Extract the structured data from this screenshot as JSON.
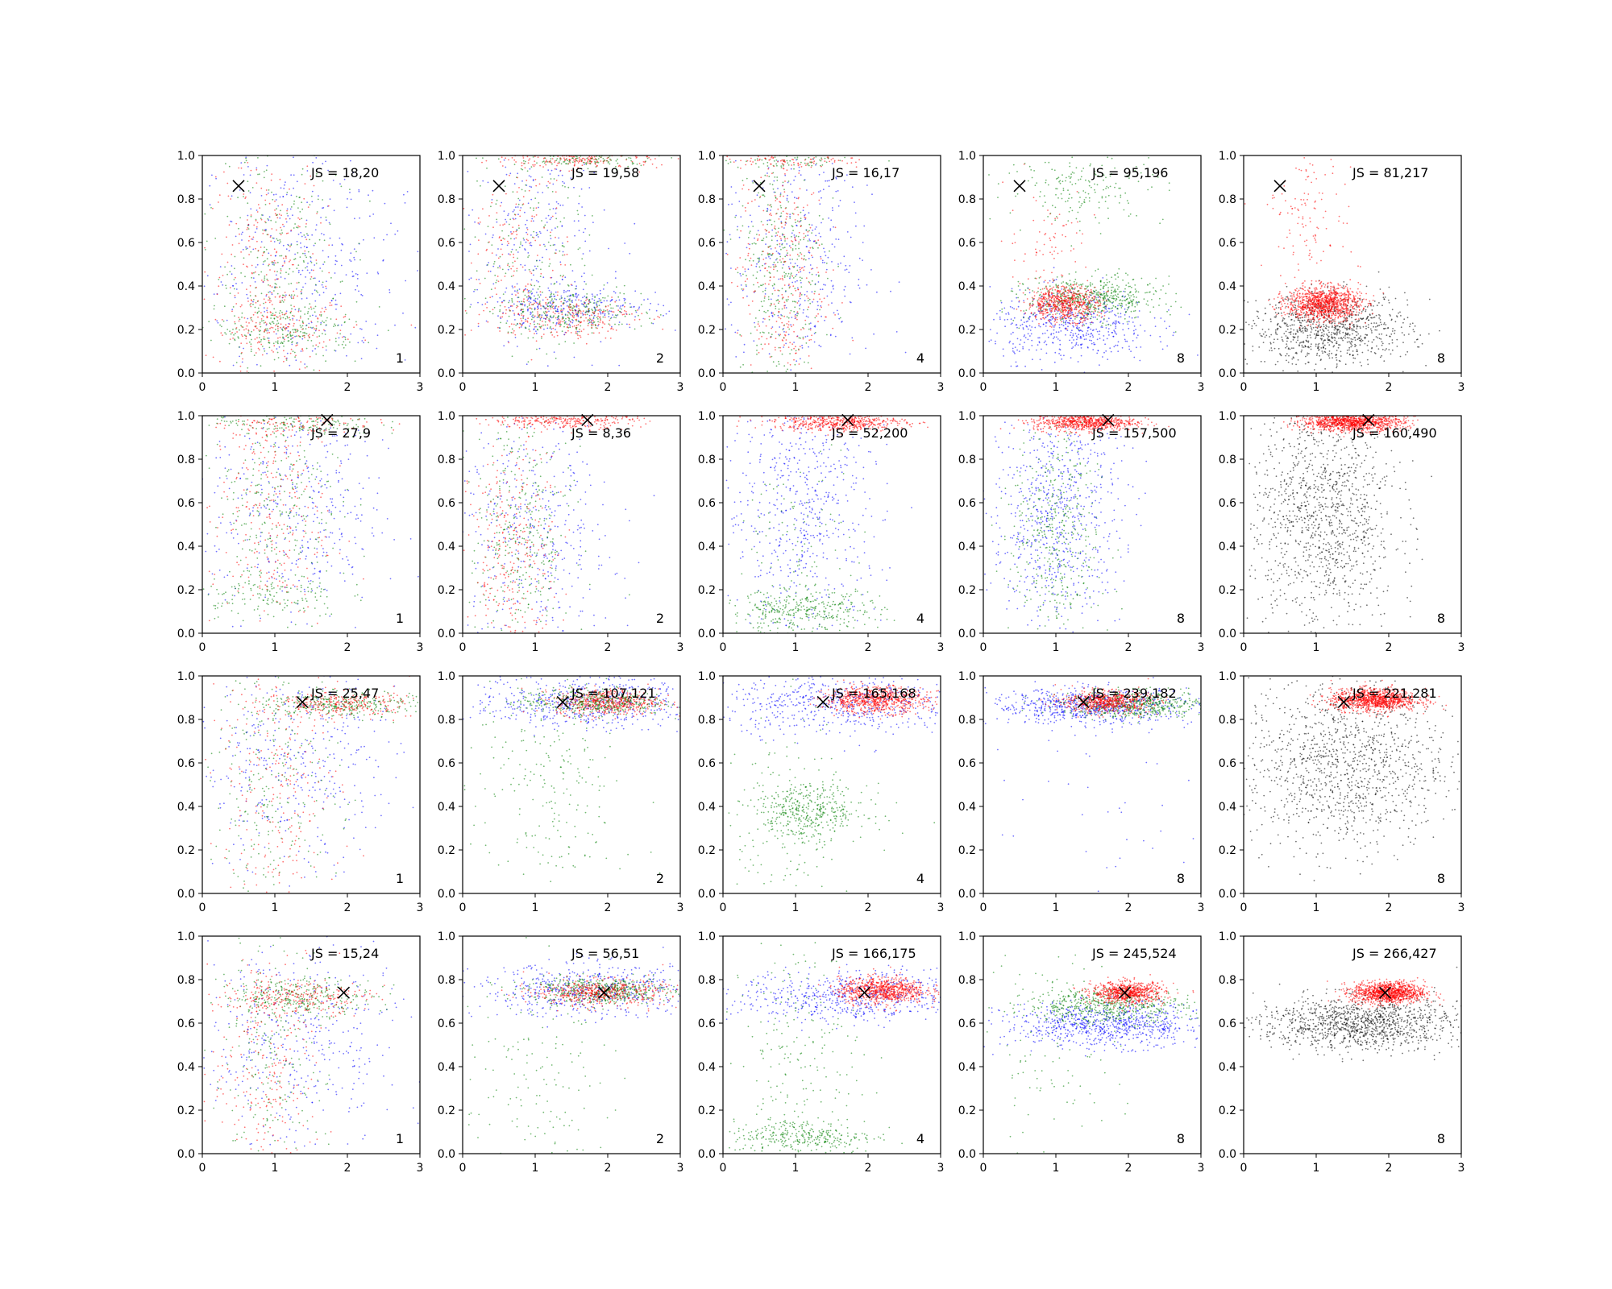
{
  "figure": {
    "rows": 4,
    "cols": 5
  },
  "chart_data": {
    "type": "scatter",
    "xlim": [
      0,
      3
    ],
    "ylim": [
      0,
      1
    ],
    "x_ticks": [
      "0",
      "1",
      "2",
      "3"
    ],
    "y_ticks": [
      "0.0",
      "0.2",
      "0.4",
      "0.6",
      "0.8",
      "1.0"
    ],
    "grid": false,
    "colors": {
      "blue": "#0000ff",
      "green": "#008000",
      "red": "#ff0000",
      "black": "#000000"
    },
    "panels": [
      {
        "row": 0,
        "col": 0,
        "js_label": "JS = 18,20",
        "n_label": "1",
        "marker": [
          0.5,
          0.86
        ],
        "clusters": [
          {
            "color": "blue",
            "cx": 1.4,
            "cy": 0.5,
            "sx": 0.7,
            "sy": 0.28,
            "n": 650
          },
          {
            "color": "green",
            "cx": 1.0,
            "cy": 0.5,
            "sx": 0.45,
            "sy": 0.3,
            "n": 500
          },
          {
            "color": "red",
            "cx": 0.9,
            "cy": 0.5,
            "sx": 0.4,
            "sy": 0.3,
            "n": 450
          },
          {
            "color": "green",
            "cx": 1.2,
            "cy": 0.2,
            "sx": 0.5,
            "sy": 0.06,
            "n": 350
          },
          {
            "color": "red",
            "cx": 1.1,
            "cy": 0.2,
            "sx": 0.5,
            "sy": 0.06,
            "n": 250
          }
        ]
      },
      {
        "row": 0,
        "col": 1,
        "js_label": "JS = 19,58",
        "n_label": "2",
        "marker": [
          0.5,
          0.86
        ],
        "clusters": [
          {
            "color": "blue",
            "cx": 1.5,
            "cy": 0.3,
            "sx": 0.6,
            "sy": 0.05,
            "n": 450
          },
          {
            "color": "green",
            "cx": 1.5,
            "cy": 0.28,
            "sx": 0.5,
            "sy": 0.05,
            "n": 450
          },
          {
            "color": "red",
            "cx": 1.4,
            "cy": 0.26,
            "sx": 0.5,
            "sy": 0.05,
            "n": 400
          },
          {
            "color": "red",
            "cx": 1.7,
            "cy": 0.98,
            "sx": 0.5,
            "sy": 0.02,
            "n": 300
          },
          {
            "color": "green",
            "cx": 1.7,
            "cy": 0.98,
            "sx": 0.5,
            "sy": 0.02,
            "n": 200
          },
          {
            "color": "blue",
            "cx": 1.0,
            "cy": 0.6,
            "sx": 0.5,
            "sy": 0.25,
            "n": 450
          },
          {
            "color": "green",
            "cx": 0.9,
            "cy": 0.6,
            "sx": 0.4,
            "sy": 0.25,
            "n": 300
          },
          {
            "color": "red",
            "cx": 0.8,
            "cy": 0.6,
            "sx": 0.35,
            "sy": 0.25,
            "n": 300
          }
        ]
      },
      {
        "row": 0,
        "col": 2,
        "js_label": "JS = 16,17",
        "n_label": "4",
        "marker": [
          0.5,
          0.86
        ],
        "clusters": [
          {
            "color": "blue",
            "cx": 1.0,
            "cy": 0.5,
            "sx": 0.5,
            "sy": 0.3,
            "n": 650
          },
          {
            "color": "green",
            "cx": 0.8,
            "cy": 0.5,
            "sx": 0.3,
            "sy": 0.3,
            "n": 600
          },
          {
            "color": "red",
            "cx": 0.8,
            "cy": 0.45,
            "sx": 0.3,
            "sy": 0.3,
            "n": 550
          },
          {
            "color": "red",
            "cx": 1.0,
            "cy": 0.98,
            "sx": 0.5,
            "sy": 0.02,
            "n": 150
          },
          {
            "color": "green",
            "cx": 1.0,
            "cy": 0.98,
            "sx": 0.5,
            "sy": 0.02,
            "n": 100
          }
        ]
      },
      {
        "row": 0,
        "col": 3,
        "js_label": "JS = 95,196",
        "n_label": "8",
        "marker": [
          0.5,
          0.86
        ],
        "clusters": [
          {
            "color": "blue",
            "cx": 1.2,
            "cy": 0.22,
            "sx": 0.55,
            "sy": 0.08,
            "n": 900
          },
          {
            "color": "green",
            "cx": 1.5,
            "cy": 0.34,
            "sx": 0.45,
            "sy": 0.05,
            "n": 900
          },
          {
            "color": "red",
            "cx": 1.1,
            "cy": 0.32,
            "sx": 0.25,
            "sy": 0.04,
            "n": 1000
          },
          {
            "color": "green",
            "cx": 1.4,
            "cy": 0.85,
            "sx": 0.55,
            "sy": 0.08,
            "n": 300
          },
          {
            "color": "red",
            "cx": 0.9,
            "cy": 0.62,
            "sx": 0.3,
            "sy": 0.12,
            "n": 120
          }
        ]
      },
      {
        "row": 0,
        "col": 4,
        "js_label": "JS = 81,217",
        "n_label": "8",
        "marker": [
          0.5,
          0.86
        ],
        "clusters": [
          {
            "color": "black",
            "cx": 1.2,
            "cy": 0.2,
            "sx": 0.55,
            "sy": 0.08,
            "n": 1500
          },
          {
            "color": "red",
            "cx": 1.1,
            "cy": 0.32,
            "sx": 0.25,
            "sy": 0.04,
            "n": 1800
          },
          {
            "color": "red",
            "cx": 0.9,
            "cy": 0.75,
            "sx": 0.3,
            "sy": 0.15,
            "n": 200
          }
        ]
      },
      {
        "row": 1,
        "col": 0,
        "js_label": "JS = 27,9",
        "n_label": "1",
        "marker": [
          1.72,
          0.98
        ],
        "clusters": [
          {
            "color": "blue",
            "cx": 1.3,
            "cy": 0.55,
            "sx": 0.6,
            "sy": 0.28,
            "n": 650
          },
          {
            "color": "green",
            "cx": 1.0,
            "cy": 0.6,
            "sx": 0.45,
            "sy": 0.3,
            "n": 500
          },
          {
            "color": "red",
            "cx": 0.9,
            "cy": 0.55,
            "sx": 0.4,
            "sy": 0.3,
            "n": 450
          },
          {
            "color": "green",
            "cx": 1.3,
            "cy": 0.97,
            "sx": 0.55,
            "sy": 0.03,
            "n": 250
          },
          {
            "color": "red",
            "cx": 1.3,
            "cy": 0.97,
            "sx": 0.55,
            "sy": 0.03,
            "n": 200
          },
          {
            "color": "green",
            "cx": 0.9,
            "cy": 0.18,
            "sx": 0.5,
            "sy": 0.05,
            "n": 200
          }
        ]
      },
      {
        "row": 1,
        "col": 1,
        "js_label": "JS = 8,36",
        "n_label": "2",
        "marker": [
          1.72,
          0.98
        ],
        "clusters": [
          {
            "color": "blue",
            "cx": 1.0,
            "cy": 0.45,
            "sx": 0.55,
            "sy": 0.3,
            "n": 700
          },
          {
            "color": "green",
            "cx": 0.8,
            "cy": 0.45,
            "sx": 0.35,
            "sy": 0.3,
            "n": 600
          },
          {
            "color": "red",
            "cx": 0.7,
            "cy": 0.35,
            "sx": 0.3,
            "sy": 0.25,
            "n": 500
          },
          {
            "color": "red",
            "cx": 1.4,
            "cy": 0.98,
            "sx": 0.5,
            "sy": 0.02,
            "n": 500
          }
        ]
      },
      {
        "row": 1,
        "col": 2,
        "js_label": "JS = 52,200",
        "n_label": "4",
        "marker": [
          1.72,
          0.98
        ],
        "clusters": [
          {
            "color": "blue",
            "cx": 1.1,
            "cy": 0.6,
            "sx": 0.55,
            "sy": 0.3,
            "n": 1000
          },
          {
            "color": "green",
            "cx": 1.1,
            "cy": 0.1,
            "sx": 0.55,
            "sy": 0.05,
            "n": 600
          },
          {
            "color": "red",
            "cx": 1.6,
            "cy": 0.97,
            "sx": 0.45,
            "sy": 0.02,
            "n": 900
          },
          {
            "color": "green",
            "cx": 1.1,
            "cy": 0.4,
            "sx": 0.4,
            "sy": 0.25,
            "n": 150
          }
        ]
      },
      {
        "row": 1,
        "col": 3,
        "js_label": "JS = 157,500",
        "n_label": "8",
        "marker": [
          1.72,
          0.98
        ],
        "clusters": [
          {
            "color": "blue",
            "cx": 1.0,
            "cy": 0.55,
            "sx": 0.45,
            "sy": 0.27,
            "n": 1200
          },
          {
            "color": "green",
            "cx": 1.0,
            "cy": 0.45,
            "sx": 0.3,
            "sy": 0.25,
            "n": 700
          },
          {
            "color": "red",
            "cx": 1.4,
            "cy": 0.97,
            "sx": 0.35,
            "sy": 0.02,
            "n": 1200
          }
        ]
      },
      {
        "row": 1,
        "col": 4,
        "js_label": "JS = 160,490",
        "n_label": "8",
        "marker": [
          1.72,
          0.98
        ],
        "clusters": [
          {
            "color": "black",
            "cx": 1.1,
            "cy": 0.55,
            "sx": 0.5,
            "sy": 0.28,
            "n": 2000
          },
          {
            "color": "red",
            "cx": 1.5,
            "cy": 0.97,
            "sx": 0.35,
            "sy": 0.02,
            "n": 1800
          }
        ]
      },
      {
        "row": 2,
        "col": 0,
        "js_label": "JS = 25,47",
        "n_label": "1",
        "marker": [
          1.38,
          0.88
        ],
        "clusters": [
          {
            "color": "blue",
            "cx": 1.3,
            "cy": 0.6,
            "sx": 0.7,
            "sy": 0.25,
            "n": 650
          },
          {
            "color": "green",
            "cx": 1.0,
            "cy": 0.5,
            "sx": 0.45,
            "sy": 0.28,
            "n": 400
          },
          {
            "color": "red",
            "cx": 1.0,
            "cy": 0.5,
            "sx": 0.45,
            "sy": 0.28,
            "n": 400
          },
          {
            "color": "green",
            "cx": 1.9,
            "cy": 0.87,
            "sx": 0.5,
            "sy": 0.03,
            "n": 500
          },
          {
            "color": "red",
            "cx": 1.9,
            "cy": 0.87,
            "sx": 0.5,
            "sy": 0.03,
            "n": 450
          }
        ]
      },
      {
        "row": 2,
        "col": 1,
        "js_label": "JS = 107,121",
        "n_label": "2",
        "marker": [
          1.38,
          0.88
        ],
        "clusters": [
          {
            "color": "blue",
            "cx": 1.7,
            "cy": 0.88,
            "sx": 0.8,
            "sy": 0.06,
            "n": 900
          },
          {
            "color": "green",
            "cx": 1.2,
            "cy": 0.5,
            "sx": 0.5,
            "sy": 0.3,
            "n": 400
          },
          {
            "color": "red",
            "cx": 2.0,
            "cy": 0.88,
            "sx": 0.35,
            "sy": 0.03,
            "n": 900
          },
          {
            "color": "green",
            "cx": 1.8,
            "cy": 0.88,
            "sx": 0.5,
            "sy": 0.03,
            "n": 600
          }
        ]
      },
      {
        "row": 2,
        "col": 2,
        "js_label": "JS = 165,168",
        "n_label": "4",
        "marker": [
          1.38,
          0.88
        ],
        "clusters": [
          {
            "color": "blue",
            "cx": 1.6,
            "cy": 0.87,
            "sx": 0.8,
            "sy": 0.07,
            "n": 900
          },
          {
            "color": "green",
            "cx": 1.2,
            "cy": 0.38,
            "sx": 0.4,
            "sy": 0.06,
            "n": 600
          },
          {
            "color": "green",
            "cx": 0.9,
            "cy": 0.3,
            "sx": 0.35,
            "sy": 0.25,
            "n": 300
          },
          {
            "color": "red",
            "cx": 2.1,
            "cy": 0.89,
            "sx": 0.35,
            "sy": 0.03,
            "n": 1200
          }
        ]
      },
      {
        "row": 2,
        "col": 3,
        "js_label": "JS = 239,182",
        "n_label": "8",
        "marker": [
          1.38,
          0.88
        ],
        "clusters": [
          {
            "color": "blue",
            "cx": 1.5,
            "cy": 0.86,
            "sx": 0.7,
            "sy": 0.04,
            "n": 1200
          },
          {
            "color": "green",
            "cx": 2.1,
            "cy": 0.87,
            "sx": 0.5,
            "sy": 0.03,
            "n": 900
          },
          {
            "color": "red",
            "cx": 1.7,
            "cy": 0.88,
            "sx": 0.3,
            "sy": 0.025,
            "n": 1000
          },
          {
            "color": "blue",
            "cx": 1.5,
            "cy": 0.4,
            "sx": 0.7,
            "sy": 0.2,
            "n": 60
          }
        ]
      },
      {
        "row": 2,
        "col": 4,
        "js_label": "JS = 221,281",
        "n_label": "8",
        "marker": [
          1.38,
          0.88
        ],
        "clusters": [
          {
            "color": "black",
            "cx": 1.4,
            "cy": 0.6,
            "sx": 0.7,
            "sy": 0.2,
            "n": 2000
          },
          {
            "color": "red",
            "cx": 1.8,
            "cy": 0.89,
            "sx": 0.3,
            "sy": 0.025,
            "n": 1800
          }
        ]
      },
      {
        "row": 3,
        "col": 0,
        "js_label": "JS = 15,24",
        "n_label": "1",
        "marker": [
          1.95,
          0.74
        ],
        "clusters": [
          {
            "color": "blue",
            "cx": 1.3,
            "cy": 0.5,
            "sx": 0.7,
            "sy": 0.25,
            "n": 650
          },
          {
            "color": "green",
            "cx": 1.4,
            "cy": 0.72,
            "sx": 0.5,
            "sy": 0.04,
            "n": 450
          },
          {
            "color": "red",
            "cx": 1.3,
            "cy": 0.72,
            "sx": 0.5,
            "sy": 0.04,
            "n": 400
          },
          {
            "color": "green",
            "cx": 0.9,
            "cy": 0.4,
            "sx": 0.4,
            "sy": 0.3,
            "n": 400
          },
          {
            "color": "red",
            "cx": 0.9,
            "cy": 0.4,
            "sx": 0.4,
            "sy": 0.3,
            "n": 400
          }
        ]
      },
      {
        "row": 3,
        "col": 1,
        "js_label": "JS = 56,51",
        "n_label": "2",
        "marker": [
          1.95,
          0.74
        ],
        "clusters": [
          {
            "color": "blue",
            "cx": 1.8,
            "cy": 0.75,
            "sx": 0.8,
            "sy": 0.06,
            "n": 900
          },
          {
            "color": "green",
            "cx": 1.9,
            "cy": 0.75,
            "sx": 0.5,
            "sy": 0.03,
            "n": 800
          },
          {
            "color": "red",
            "cx": 1.9,
            "cy": 0.74,
            "sx": 0.45,
            "sy": 0.03,
            "n": 800
          },
          {
            "color": "green",
            "cx": 1.0,
            "cy": 0.35,
            "sx": 0.5,
            "sy": 0.25,
            "n": 250
          }
        ]
      },
      {
        "row": 3,
        "col": 2,
        "js_label": "JS = 166,175",
        "n_label": "4",
        "marker": [
          1.95,
          0.74
        ],
        "clusters": [
          {
            "color": "blue",
            "cx": 1.8,
            "cy": 0.72,
            "sx": 0.8,
            "sy": 0.06,
            "n": 1000
          },
          {
            "color": "green",
            "cx": 1.1,
            "cy": 0.08,
            "sx": 0.5,
            "sy": 0.04,
            "n": 500
          },
          {
            "color": "green",
            "cx": 1.0,
            "cy": 0.45,
            "sx": 0.45,
            "sy": 0.28,
            "n": 350
          },
          {
            "color": "red",
            "cx": 2.2,
            "cy": 0.75,
            "sx": 0.3,
            "sy": 0.03,
            "n": 1300
          }
        ]
      },
      {
        "row": 3,
        "col": 3,
        "js_label": "JS = 245,524",
        "n_label": "8",
        "marker": [
          1.95,
          0.74
        ],
        "clusters": [
          {
            "color": "blue",
            "cx": 1.7,
            "cy": 0.59,
            "sx": 0.7,
            "sy": 0.05,
            "n": 1300
          },
          {
            "color": "green",
            "cx": 1.7,
            "cy": 0.68,
            "sx": 0.55,
            "sy": 0.04,
            "n": 900
          },
          {
            "color": "red",
            "cx": 2.0,
            "cy": 0.74,
            "sx": 0.25,
            "sy": 0.025,
            "n": 1200
          },
          {
            "color": "green",
            "cx": 0.9,
            "cy": 0.4,
            "sx": 0.5,
            "sy": 0.3,
            "n": 200
          }
        ]
      },
      {
        "row": 3,
        "col": 4,
        "js_label": "JS = 266,427",
        "n_label": "8",
        "marker": [
          1.95,
          0.74
        ],
        "clusters": [
          {
            "color": "black",
            "cx": 1.6,
            "cy": 0.6,
            "sx": 0.7,
            "sy": 0.06,
            "n": 2000
          },
          {
            "color": "red",
            "cx": 2.0,
            "cy": 0.74,
            "sx": 0.25,
            "sy": 0.025,
            "n": 1800
          }
        ]
      }
    ]
  }
}
